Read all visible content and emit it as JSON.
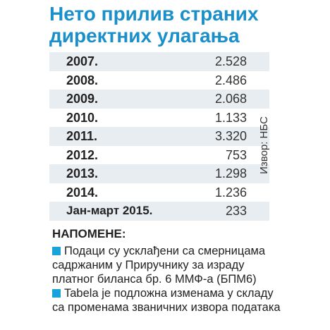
{
  "title": "Нето прилив страних директних улагања",
  "source": "Извор: НБС",
  "notes_heading": "НАПОМЕНЕ:",
  "notes": [
    "Подаци су усклађени са смерницама садржаним у Приручнику за израду платног биланса бр. 6 ММФ-а (БПМ6)",
    "Tabela је подложна изменама у складу са променама званичних извора података"
  ],
  "colors": {
    "title": "#1a8fc9",
    "bullet": "#1aa3d6",
    "row_shade": "#e8edf2"
  },
  "chart_data": {
    "type": "table",
    "title": "Нето прилив страних директних улагања",
    "categories": [
      "2007.",
      "2008.",
      "2009.",
      "2010.",
      "2011.",
      "2012.",
      "2013.",
      "2014.",
      "Јан-март 2015."
    ],
    "display_values": [
      "2.528",
      "2.486",
      "2.068",
      "1.133",
      "3.320",
      "753",
      "1.298",
      "1.236",
      "233"
    ],
    "values": [
      2528,
      2486,
      2068,
      1133,
      3320,
      753,
      1298,
      1236,
      233
    ]
  }
}
